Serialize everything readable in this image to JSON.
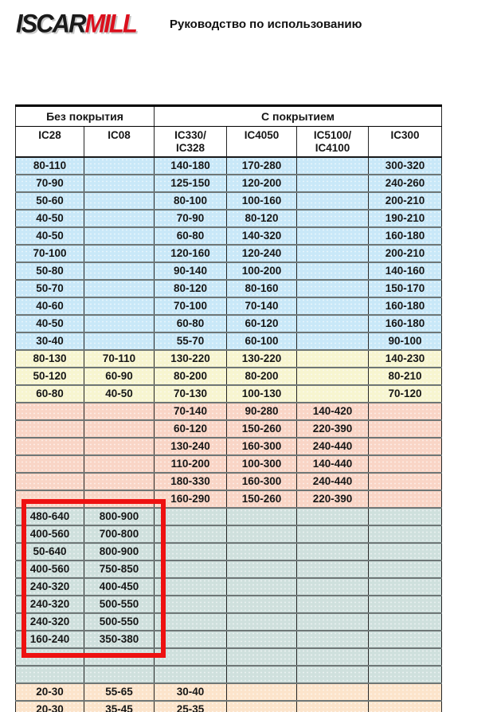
{
  "header": {
    "logo_iscar": "ISCAR",
    "logo_mill": "MILL",
    "title": "Руководство по использованию"
  },
  "table": {
    "group_headers": [
      {
        "label": "Без покрытия"
      },
      {
        "label": "С покрытием"
      }
    ],
    "columns": [
      {
        "line1": "IC28",
        "line2": ""
      },
      {
        "line1": "IC08",
        "line2": ""
      },
      {
        "line1": "IC330/",
        "line2": "IC328"
      },
      {
        "line1": "IC4050",
        "line2": ""
      },
      {
        "line1": "IC5100/",
        "line2": "IC4100"
      },
      {
        "line1": "IC300",
        "line2": ""
      }
    ],
    "rows": [
      {
        "band": "blue",
        "cells": [
          "80-110",
          "",
          "140-180",
          "170-280",
          "",
          "300-320"
        ]
      },
      {
        "band": "blue",
        "cells": [
          "70-90",
          "",
          "125-150",
          "120-200",
          "",
          "240-260"
        ]
      },
      {
        "band": "blue",
        "cells": [
          "50-60",
          "",
          "80-100",
          "100-160",
          "",
          "200-210"
        ]
      },
      {
        "band": "blue",
        "cells": [
          "40-50",
          "",
          "70-90",
          "80-120",
          "",
          "190-210"
        ]
      },
      {
        "band": "blue",
        "cells": [
          "40-50",
          "",
          "60-80",
          "140-320",
          "",
          "160-180"
        ]
      },
      {
        "band": "blue",
        "cells": [
          "70-100",
          "",
          "120-160",
          "120-240",
          "",
          "200-210"
        ]
      },
      {
        "band": "blue",
        "cells": [
          "50-80",
          "",
          "90-140",
          "100-200",
          "",
          "140-160"
        ]
      },
      {
        "band": "blue",
        "cells": [
          "50-70",
          "",
          "80-120",
          "80-160",
          "",
          "150-170"
        ]
      },
      {
        "band": "blue",
        "cells": [
          "40-60",
          "",
          "70-100",
          "70-140",
          "",
          "160-180"
        ]
      },
      {
        "band": "blue",
        "cells": [
          "40-50",
          "",
          "60-80",
          "60-120",
          "",
          "160-180"
        ]
      },
      {
        "band": "blue",
        "cells": [
          "30-40",
          "",
          "55-70",
          "60-100",
          "",
          "90-100"
        ]
      },
      {
        "band": "yellow",
        "cells": [
          "80-130",
          "70-110",
          "130-220",
          "130-220",
          "",
          "140-230"
        ]
      },
      {
        "band": "yellow",
        "cells": [
          "50-120",
          "60-90",
          "80-200",
          "80-200",
          "",
          "80-210"
        ]
      },
      {
        "band": "yellow",
        "cells": [
          "60-80",
          "40-50",
          "70-130",
          "100-130",
          "",
          "70-120"
        ]
      },
      {
        "band": "salmon",
        "cells": [
          "",
          "",
          "70-140",
          "90-280",
          "140-420",
          ""
        ]
      },
      {
        "band": "salmon",
        "cells": [
          "",
          "",
          "60-120",
          "150-260",
          "220-390",
          ""
        ]
      },
      {
        "band": "salmon",
        "cells": [
          "",
          "",
          "130-240",
          "160-300",
          "240-440",
          ""
        ]
      },
      {
        "band": "salmon",
        "cells": [
          "",
          "",
          "110-200",
          "100-300",
          "140-440",
          ""
        ]
      },
      {
        "band": "salmon",
        "cells": [
          "",
          "",
          "180-330",
          "160-300",
          "240-440",
          ""
        ]
      },
      {
        "band": "salmon",
        "cells": [
          "",
          "",
          "160-290",
          "150-260",
          "220-390",
          ""
        ]
      },
      {
        "band": "teal",
        "cells": [
          "480-640",
          "800-900",
          "",
          "",
          "",
          ""
        ]
      },
      {
        "band": "teal",
        "cells": [
          "400-560",
          "700-800",
          "",
          "",
          "",
          ""
        ]
      },
      {
        "band": "teal",
        "cells": [
          "50-640",
          "800-900",
          "",
          "",
          "",
          ""
        ]
      },
      {
        "band": "teal",
        "cells": [
          "400-560",
          "750-850",
          "",
          "",
          "",
          ""
        ]
      },
      {
        "band": "teal",
        "cells": [
          "240-320",
          "400-450",
          "",
          "",
          "",
          ""
        ]
      },
      {
        "band": "teal",
        "cells": [
          "240-320",
          "500-550",
          "",
          "",
          "",
          ""
        ]
      },
      {
        "band": "teal",
        "cells": [
          "240-320",
          "500-550",
          "",
          "",
          "",
          ""
        ]
      },
      {
        "band": "teal",
        "cells": [
          "160-240",
          "350-380",
          "",
          "",
          "",
          ""
        ]
      },
      {
        "band": "teal",
        "cells": [
          "",
          "",
          "",
          "",
          "",
          ""
        ]
      },
      {
        "band": "teal",
        "cells": [
          "",
          "",
          "",
          "",
          "",
          ""
        ]
      },
      {
        "band": "peach",
        "cells": [
          "20-30",
          "55-65",
          "30-40",
          "",
          "",
          ""
        ]
      },
      {
        "band": "peach",
        "cells": [
          "20-30",
          "35-45",
          "25-35",
          "",
          "",
          ""
        ]
      }
    ]
  },
  "annotation": {
    "shape": "red-rectangle",
    "color": "#ee1111"
  },
  "colors": {
    "band_blue": "#c9e8f8",
    "band_yellow": "#f7f5d0",
    "band_salmon": "#f9d5c6",
    "band_teal": "#cfe0dd",
    "band_peach": "#fce4cb",
    "logo_red": "#db0f1d",
    "annotation_red": "#ee1111"
  }
}
